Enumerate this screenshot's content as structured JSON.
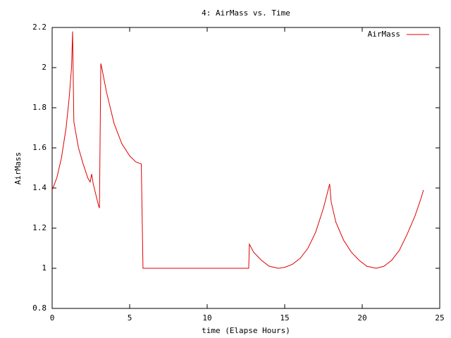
{
  "chart_data": {
    "type": "line",
    "title": "4: AirMass vs. Time",
    "xlabel": "time (Elapse Hours)",
    "ylabel": "AirMass",
    "x": [
      0,
      0.3,
      0.6,
      0.9,
      1.1,
      1.25,
      1.32,
      1.4,
      1.7,
      2.0,
      2.3,
      2.45,
      2.55,
      2.65,
      3.0,
      3.05,
      3.14,
      3.2,
      3.5,
      4.0,
      4.5,
      5.0,
      5.4,
      5.75,
      5.86,
      12.68,
      12.72,
      13.0,
      13.5,
      14.0,
      14.6,
      15.0,
      15.5,
      16.0,
      16.5,
      17.0,
      17.5,
      17.8,
      17.9,
      18.0,
      18.3,
      18.8,
      19.3,
      19.8,
      20.3,
      20.9,
      21.4,
      21.9,
      22.4,
      22.9,
      23.4,
      23.8,
      23.95
    ],
    "series": [
      {
        "name": "AirMass",
        "color": "#e00000",
        "values": [
          1.39,
          1.45,
          1.55,
          1.7,
          1.85,
          2.0,
          2.18,
          1.73,
          1.6,
          1.52,
          1.45,
          1.43,
          1.47,
          1.42,
          1.31,
          1.3,
          2.02,
          2.0,
          1.88,
          1.72,
          1.62,
          1.56,
          1.53,
          1.52,
          1.0,
          1.0,
          1.12,
          1.08,
          1.04,
          1.01,
          1.0,
          1.005,
          1.02,
          1.05,
          1.1,
          1.18,
          1.3,
          1.39,
          1.42,
          1.33,
          1.23,
          1.14,
          1.08,
          1.04,
          1.01,
          1.0,
          1.01,
          1.04,
          1.09,
          1.17,
          1.26,
          1.35,
          1.39
        ]
      }
    ],
    "xlim": [
      0,
      25
    ],
    "xticks": [
      0,
      5,
      10,
      15,
      20,
      25
    ],
    "ylim": [
      0.8,
      2.2
    ],
    "yticks": [
      0.8,
      1,
      1.2,
      1.4,
      1.6,
      1.8,
      2,
      2.2
    ],
    "legend": "top-right",
    "grid": false
  }
}
